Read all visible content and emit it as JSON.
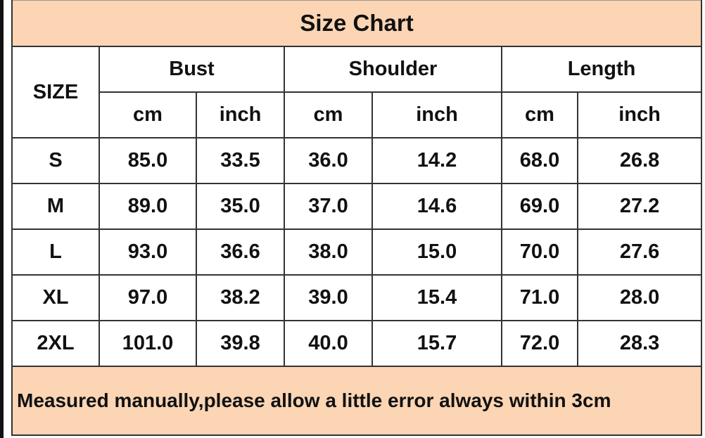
{
  "title": "Size Chart",
  "size_header": "SIZE",
  "groups": [
    "Bust",
    "Shoulder",
    "Length"
  ],
  "units": [
    "cm",
    "inch",
    "cm",
    "inch",
    "cm",
    "inch"
  ],
  "rows": [
    {
      "size": "S",
      "values": [
        "85.0",
        "33.5",
        "36.0",
        "14.2",
        "68.0",
        "26.8"
      ]
    },
    {
      "size": "M",
      "values": [
        "89.0",
        "35.0",
        "37.0",
        "14.6",
        "69.0",
        "27.2"
      ]
    },
    {
      "size": "L",
      "values": [
        "93.0",
        "36.6",
        "38.0",
        "15.0",
        "70.0",
        "27.6"
      ]
    },
    {
      "size": "XL",
      "values": [
        "97.0",
        "38.2",
        "39.0",
        "15.4",
        "71.0",
        "28.0"
      ]
    },
    {
      "size": "2XL",
      "values": [
        "101.0",
        "39.8",
        "40.0",
        "15.7",
        "72.0",
        "28.3"
      ]
    }
  ],
  "note": "Measured manually,please allow a little error always within 3cm",
  "colors": {
    "header_bg": "#fcd5b4",
    "border": "#333333"
  }
}
